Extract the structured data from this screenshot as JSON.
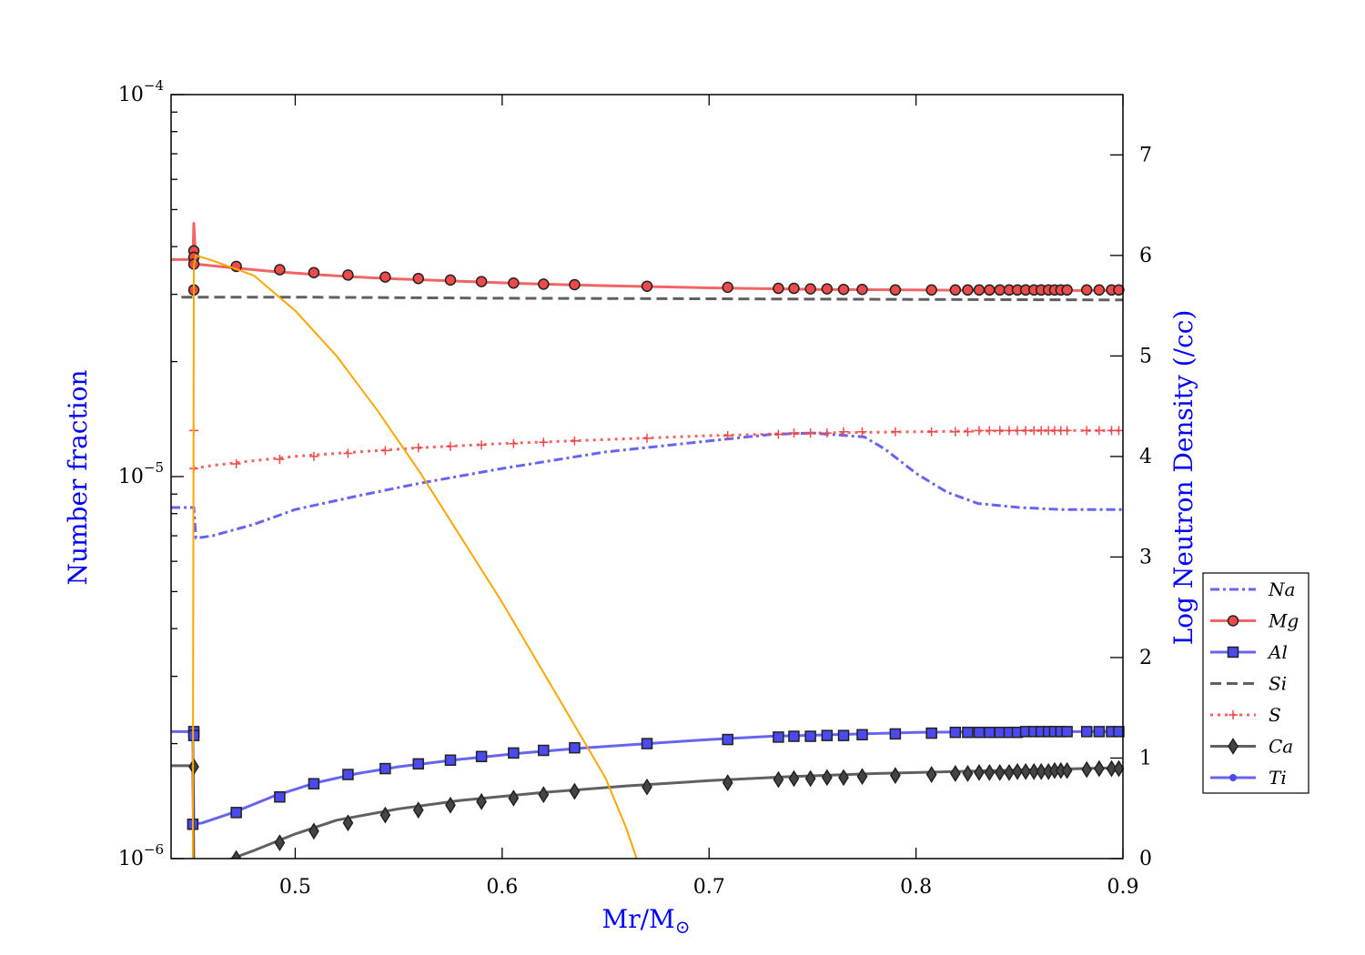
{
  "chart_data": {
    "type": "line",
    "title": "",
    "xlabel": "Mr/M",
    "xlabel_subscript": "⊙",
    "ylabel": "Number fraction",
    "y2label": "Log Neutron Density (/cc)",
    "xlim": [
      0.44,
      0.9
    ],
    "ylim": [
      1e-06,
      0.0001
    ],
    "yscale": "log",
    "y2lim": [
      0,
      7.6
    ],
    "x_ticks": [
      0.5,
      0.6,
      0.7,
      0.8,
      0.9
    ],
    "x_tick_labels": [
      "0.5",
      "0.6",
      "0.7",
      "0.8",
      "0.9"
    ],
    "y_ticks": [
      1e-06,
      1e-05,
      0.0001
    ],
    "y_tick_bases": [
      "10",
      "10",
      "10"
    ],
    "y_tick_exponents": [
      "−6",
      "−5",
      "−4"
    ],
    "y2_ticks": [
      0,
      1,
      2,
      3,
      4,
      5,
      6,
      7
    ],
    "y2_tick_labels": [
      "0",
      "1",
      "2",
      "3",
      "4",
      "5",
      "6",
      "7"
    ],
    "legend_position": "right",
    "colors": {
      "blue": "#4a4aee",
      "red": "#ee4a4a",
      "dark": "#444444",
      "orange": "#ffa500"
    },
    "series": [
      {
        "name": "Na",
        "style": "dashdot",
        "color": "#4a4aee",
        "marker": "none",
        "x": [
          0.44,
          0.451,
          0.452,
          0.46,
          0.48,
          0.5,
          0.53,
          0.56,
          0.6,
          0.65,
          0.7,
          0.73,
          0.75,
          0.775,
          0.785,
          0.8,
          0.815,
          0.83,
          0.85,
          0.87,
          0.9
        ],
        "y": [
          8.3e-06,
          8.3e-06,
          6.9e-06,
          7e-06,
          7.5e-06,
          8.2e-06,
          8.9e-06,
          9.6e-06,
          1.05e-05,
          1.16e-05,
          1.24e-05,
          1.29e-05,
          1.3e-05,
          1.27e-05,
          1.18e-05,
          1.02e-05,
          9.1e-06,
          8.5e-06,
          8.3e-06,
          8.2e-06,
          8.2e-06
        ]
      },
      {
        "name": "Mg",
        "style": "solid",
        "color": "#ee4a4a",
        "marker": "circle",
        "x": [
          0.44,
          0.4505,
          0.451,
          0.452,
          0.47,
          0.49,
          0.51,
          0.53,
          0.55,
          0.57,
          0.59,
          0.61,
          0.63,
          0.65,
          0.7,
          0.75,
          0.8,
          0.85,
          0.9
        ],
        "y": [
          3.7e-05,
          3.7e-05,
          4.6e-05,
          3.6e-05,
          3.52e-05,
          3.44e-05,
          3.38e-05,
          3.33e-05,
          3.29e-05,
          3.26e-05,
          3.23e-05,
          3.2e-05,
          3.18e-05,
          3.16e-05,
          3.12e-05,
          3.09e-05,
          3.08e-05,
          3.07e-05,
          3.07e-05
        ],
        "markers_x": [
          0.451,
          0.451,
          0.451,
          0.451,
          0.4715,
          0.4925,
          0.509,
          0.5255,
          0.5435,
          0.5595,
          0.575,
          0.59,
          0.6055,
          0.62,
          0.635,
          0.67,
          0.709,
          0.7335,
          0.741,
          0.749,
          0.757,
          0.765,
          0.774,
          0.79,
          0.8075,
          0.819,
          0.825,
          0.8305,
          0.8355,
          0.8405,
          0.845,
          0.849,
          0.853,
          0.857,
          0.8605,
          0.864,
          0.867,
          0.87,
          0.873,
          0.8825,
          0.8885,
          0.8945,
          0.898
        ],
        "markers_y": [
          3.9e-05,
          3.75e-05,
          3.6e-05,
          3.08e-05,
          3.55e-05,
          3.48e-05,
          3.42e-05,
          3.37e-05,
          3.33e-05,
          3.3e-05,
          3.27e-05,
          3.24e-05,
          3.21e-05,
          3.19e-05,
          3.18e-05,
          3.15e-05,
          3.13e-05,
          3.11e-05,
          3.11e-05,
          3.1e-05,
          3.1e-05,
          3.09e-05,
          3.09e-05,
          3.08e-05,
          3.08e-05,
          3.08e-05,
          3.08e-05,
          3.08e-05,
          3.08e-05,
          3.08e-05,
          3.08e-05,
          3.08e-05,
          3.08e-05,
          3.08e-05,
          3.08e-05,
          3.08e-05,
          3.08e-05,
          3.08e-05,
          3.08e-05,
          3.08e-05,
          3.08e-05,
          3.08e-05,
          3.08e-05
        ]
      },
      {
        "name": "Al",
        "style": "solid",
        "color": "#4a4aee",
        "marker": "square",
        "x": [
          0.44,
          0.4505,
          0.451,
          0.455,
          0.47,
          0.49,
          0.51,
          0.53,
          0.55,
          0.58,
          0.61,
          0.64,
          0.67,
          0.7,
          0.73,
          0.76,
          0.8,
          0.85,
          0.9
        ],
        "y": [
          2.15e-06,
          2.15e-06,
          1.23e-06,
          1.24e-06,
          1.32e-06,
          1.46e-06,
          1.58e-06,
          1.67e-06,
          1.74e-06,
          1.82e-06,
          1.89e-06,
          1.95e-06,
          2e-06,
          2.05e-06,
          2.09e-06,
          2.11e-06,
          2.14e-06,
          2.15e-06,
          2.15e-06
        ],
        "markers_x": [
          0.451,
          0.451,
          0.4505,
          0.4715,
          0.4925,
          0.509,
          0.5255,
          0.5435,
          0.5595,
          0.575,
          0.59,
          0.6055,
          0.62,
          0.635,
          0.67,
          0.709,
          0.7335,
          0.741,
          0.749,
          0.757,
          0.765,
          0.774,
          0.79,
          0.8075,
          0.819,
          0.825,
          0.8305,
          0.8355,
          0.8405,
          0.845,
          0.849,
          0.853,
          0.857,
          0.8605,
          0.864,
          0.867,
          0.87,
          0.873,
          0.8825,
          0.8885,
          0.8945,
          0.898
        ],
        "markers_y": [
          2.15e-06,
          2.1e-06,
          1.23e-06,
          1.32e-06,
          1.45e-06,
          1.57e-06,
          1.66e-06,
          1.72e-06,
          1.77e-06,
          1.81e-06,
          1.85e-06,
          1.89e-06,
          1.92e-06,
          1.95e-06,
          2e-06,
          2.05e-06,
          2.08e-06,
          2.09e-06,
          2.09e-06,
          2.1e-06,
          2.1e-06,
          2.11e-06,
          2.12e-06,
          2.13e-06,
          2.14e-06,
          2.14e-06,
          2.14e-06,
          2.14e-06,
          2.14e-06,
          2.14e-06,
          2.14e-06,
          2.15e-06,
          2.15e-06,
          2.15e-06,
          2.15e-06,
          2.15e-06,
          2.15e-06,
          2.15e-06,
          2.15e-06,
          2.15e-06,
          2.15e-06,
          2.15e-06
        ]
      },
      {
        "name": "Si",
        "style": "dashed",
        "color": "#444444",
        "marker": "none",
        "x": [
          0.445,
          0.5,
          0.6,
          0.7,
          0.8,
          0.9
        ],
        "y": [
          2.95e-05,
          2.95e-05,
          2.93e-05,
          2.92e-05,
          2.91e-05,
          2.9e-05
        ]
      },
      {
        "name": "S",
        "style": "dotted",
        "color": "#ee4a4a",
        "marker": "plus",
        "x": [
          0.451,
          0.46,
          0.48,
          0.5,
          0.53,
          0.56,
          0.6,
          0.65,
          0.7,
          0.75,
          0.8,
          0.85,
          0.9
        ],
        "y": [
          1.05e-05,
          1.07e-05,
          1.1e-05,
          1.13e-05,
          1.16e-05,
          1.19e-05,
          1.22e-05,
          1.25e-05,
          1.28e-05,
          1.3e-05,
          1.31e-05,
          1.32e-05,
          1.32e-05
        ],
        "markers_x": [
          0.451,
          0.451,
          0.4715,
          0.4925,
          0.509,
          0.5255,
          0.5435,
          0.5595,
          0.575,
          0.59,
          0.6055,
          0.62,
          0.635,
          0.67,
          0.709,
          0.7335,
          0.741,
          0.749,
          0.757,
          0.765,
          0.774,
          0.79,
          0.8075,
          0.819,
          0.825,
          0.8305,
          0.8355,
          0.8405,
          0.845,
          0.849,
          0.853,
          0.857,
          0.8605,
          0.864,
          0.867,
          0.87,
          0.873,
          0.8825,
          0.8885,
          0.8945,
          0.898
        ],
        "markers_y": [
          1.32e-05,
          1.05e-05,
          1.08e-05,
          1.11e-05,
          1.13e-05,
          1.15e-05,
          1.17e-05,
          1.19e-05,
          1.2e-05,
          1.21e-05,
          1.22e-05,
          1.23e-05,
          1.24e-05,
          1.26e-05,
          1.28e-05,
          1.29e-05,
          1.3e-05,
          1.3e-05,
          1.3e-05,
          1.31e-05,
          1.31e-05,
          1.31e-05,
          1.31e-05,
          1.31e-05,
          1.31e-05,
          1.32e-05,
          1.32e-05,
          1.32e-05,
          1.32e-05,
          1.32e-05,
          1.32e-05,
          1.32e-05,
          1.32e-05,
          1.32e-05,
          1.32e-05,
          1.32e-05,
          1.32e-05,
          1.32e-05,
          1.32e-05,
          1.32e-05,
          1.32e-05
        ]
      },
      {
        "name": "Ca",
        "style": "solid",
        "color": "#444444",
        "marker": "diamond",
        "x": [
          0.44,
          0.4505,
          0.451,
          0.465,
          0.48,
          0.5,
          0.52,
          0.55,
          0.58,
          0.62,
          0.66,
          0.7,
          0.74,
          0.78,
          0.82,
          0.86,
          0.9
        ],
        "y": [
          1.75e-06,
          1.75e-06,
          9.5e-07,
          9.8e-07,
          1.05e-06,
          1.16e-06,
          1.26e-06,
          1.35e-06,
          1.42e-06,
          1.49e-06,
          1.55e-06,
          1.6e-06,
          1.64e-06,
          1.67e-06,
          1.69e-06,
          1.71e-06,
          1.73e-06
        ],
        "markers_x": [
          0.451,
          0.4715,
          0.4925,
          0.509,
          0.5255,
          0.5435,
          0.5595,
          0.575,
          0.59,
          0.6055,
          0.62,
          0.635,
          0.67,
          0.709,
          0.7335,
          0.741,
          0.749,
          0.757,
          0.765,
          0.774,
          0.79,
          0.8075,
          0.819,
          0.825,
          0.8305,
          0.8355,
          0.8405,
          0.845,
          0.849,
          0.853,
          0.857,
          0.8605,
          0.864,
          0.867,
          0.87,
          0.873,
          0.8825,
          0.8885,
          0.8945,
          0.898
        ],
        "markers_y": [
          1.74e-06,
          1e-06,
          1.1e-06,
          1.18e-06,
          1.24e-06,
          1.3e-06,
          1.34e-06,
          1.38e-06,
          1.41e-06,
          1.44e-06,
          1.47e-06,
          1.5e-06,
          1.54e-06,
          1.58e-06,
          1.61e-06,
          1.62e-06,
          1.62e-06,
          1.63e-06,
          1.63e-06,
          1.64e-06,
          1.65e-06,
          1.66e-06,
          1.67e-06,
          1.67e-06,
          1.68e-06,
          1.68e-06,
          1.68e-06,
          1.68e-06,
          1.69e-06,
          1.69e-06,
          1.69e-06,
          1.69e-06,
          1.69e-06,
          1.7e-06,
          1.7e-06,
          1.7e-06,
          1.71e-06,
          1.72e-06,
          1.72e-06,
          1.72e-06
        ]
      },
      {
        "name": "Ti",
        "style": "solid",
        "color": "#4a4aee",
        "marker": "dot",
        "x": [],
        "y": []
      },
      {
        "name": "Log Neutron Density",
        "style": "solid",
        "color": "#ffa500",
        "marker": "none",
        "axis": "right",
        "x": [
          0.4505,
          0.451,
          0.452,
          0.46,
          0.48,
          0.5,
          0.52,
          0.54,
          0.56,
          0.58,
          0.6,
          0.62,
          0.64,
          0.65,
          0.655,
          0.66,
          0.665
        ],
        "y": [
          0,
          5.9,
          6.0,
          5.95,
          5.8,
          5.45,
          5.0,
          4.45,
          3.85,
          3.2,
          2.55,
          1.85,
          1.15,
          0.8,
          0.55,
          0.3,
          0
        ]
      }
    ]
  }
}
